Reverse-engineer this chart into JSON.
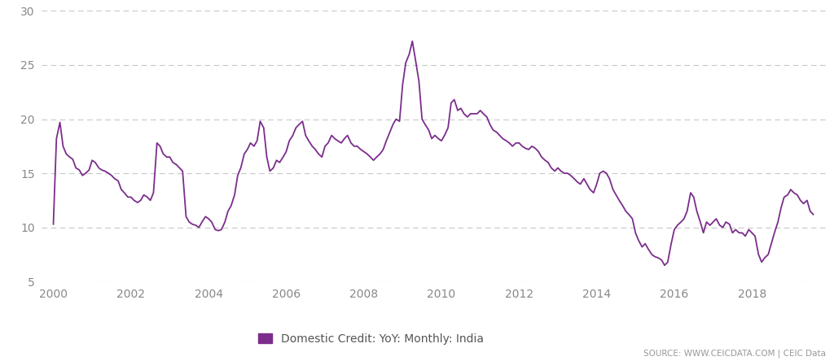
{
  "legend_label": "Domestic Credit: YoY: Monthly: India",
  "source_text": "SOURCE: WWW.CEICDATA.COM | CEIC Data",
  "line_color": "#7B2D8B",
  "background_color": "#ffffff",
  "ylim": [
    5,
    30
  ],
  "yticks": [
    5,
    10,
    15,
    20,
    25,
    30
  ],
  "xlim_start": 1999.7,
  "xlim_end": 2019.9,
  "xticks": [
    2000,
    2002,
    2004,
    2006,
    2008,
    2010,
    2012,
    2014,
    2016,
    2018
  ],
  "data": [
    [
      2000.0,
      10.3
    ],
    [
      2000.08,
      18.2
    ],
    [
      2000.17,
      19.7
    ],
    [
      2000.25,
      17.5
    ],
    [
      2000.33,
      16.8
    ],
    [
      2000.42,
      16.5
    ],
    [
      2000.5,
      16.3
    ],
    [
      2000.58,
      15.5
    ],
    [
      2000.67,
      15.3
    ],
    [
      2000.75,
      14.8
    ],
    [
      2000.83,
      15.0
    ],
    [
      2000.92,
      15.3
    ],
    [
      2001.0,
      16.2
    ],
    [
      2001.08,
      16.0
    ],
    [
      2001.17,
      15.5
    ],
    [
      2001.25,
      15.3
    ],
    [
      2001.33,
      15.2
    ],
    [
      2001.42,
      15.0
    ],
    [
      2001.5,
      14.8
    ],
    [
      2001.58,
      14.5
    ],
    [
      2001.67,
      14.3
    ],
    [
      2001.75,
      13.5
    ],
    [
      2001.83,
      13.2
    ],
    [
      2001.92,
      12.8
    ],
    [
      2002.0,
      12.8
    ],
    [
      2002.08,
      12.5
    ],
    [
      2002.17,
      12.3
    ],
    [
      2002.25,
      12.5
    ],
    [
      2002.33,
      13.0
    ],
    [
      2002.42,
      12.8
    ],
    [
      2002.5,
      12.5
    ],
    [
      2002.58,
      13.2
    ],
    [
      2002.67,
      17.8
    ],
    [
      2002.75,
      17.5
    ],
    [
      2002.83,
      16.8
    ],
    [
      2002.92,
      16.5
    ],
    [
      2003.0,
      16.5
    ],
    [
      2003.08,
      16.0
    ],
    [
      2003.17,
      15.8
    ],
    [
      2003.25,
      15.5
    ],
    [
      2003.33,
      15.2
    ],
    [
      2003.42,
      11.0
    ],
    [
      2003.5,
      10.5
    ],
    [
      2003.58,
      10.3
    ],
    [
      2003.67,
      10.2
    ],
    [
      2003.75,
      10.0
    ],
    [
      2003.83,
      10.5
    ],
    [
      2003.92,
      11.0
    ],
    [
      2004.0,
      10.8
    ],
    [
      2004.08,
      10.5
    ],
    [
      2004.17,
      9.8
    ],
    [
      2004.25,
      9.7
    ],
    [
      2004.33,
      9.8
    ],
    [
      2004.42,
      10.5
    ],
    [
      2004.5,
      11.5
    ],
    [
      2004.58,
      12.0
    ],
    [
      2004.67,
      13.0
    ],
    [
      2004.75,
      14.8
    ],
    [
      2004.83,
      15.5
    ],
    [
      2004.92,
      16.8
    ],
    [
      2005.0,
      17.2
    ],
    [
      2005.08,
      17.8
    ],
    [
      2005.17,
      17.5
    ],
    [
      2005.25,
      18.0
    ],
    [
      2005.33,
      19.8
    ],
    [
      2005.42,
      19.2
    ],
    [
      2005.5,
      16.5
    ],
    [
      2005.58,
      15.2
    ],
    [
      2005.67,
      15.5
    ],
    [
      2005.75,
      16.2
    ],
    [
      2005.83,
      16.0
    ],
    [
      2005.92,
      16.5
    ],
    [
      2006.0,
      17.0
    ],
    [
      2006.08,
      18.0
    ],
    [
      2006.17,
      18.5
    ],
    [
      2006.25,
      19.2
    ],
    [
      2006.33,
      19.5
    ],
    [
      2006.42,
      19.8
    ],
    [
      2006.5,
      18.5
    ],
    [
      2006.58,
      18.0
    ],
    [
      2006.67,
      17.5
    ],
    [
      2006.75,
      17.2
    ],
    [
      2006.83,
      16.8
    ],
    [
      2006.92,
      16.5
    ],
    [
      2007.0,
      17.5
    ],
    [
      2007.08,
      17.8
    ],
    [
      2007.17,
      18.5
    ],
    [
      2007.25,
      18.2
    ],
    [
      2007.33,
      18.0
    ],
    [
      2007.42,
      17.8
    ],
    [
      2007.5,
      18.2
    ],
    [
      2007.58,
      18.5
    ],
    [
      2007.67,
      17.8
    ],
    [
      2007.75,
      17.5
    ],
    [
      2007.83,
      17.5
    ],
    [
      2007.92,
      17.2
    ],
    [
      2008.0,
      17.0
    ],
    [
      2008.08,
      16.8
    ],
    [
      2008.17,
      16.5
    ],
    [
      2008.25,
      16.2
    ],
    [
      2008.33,
      16.5
    ],
    [
      2008.42,
      16.8
    ],
    [
      2008.5,
      17.2
    ],
    [
      2008.58,
      18.0
    ],
    [
      2008.67,
      18.8
    ],
    [
      2008.75,
      19.5
    ],
    [
      2008.83,
      20.0
    ],
    [
      2008.92,
      19.8
    ],
    [
      2009.0,
      23.2
    ],
    [
      2009.08,
      25.2
    ],
    [
      2009.17,
      26.0
    ],
    [
      2009.25,
      27.2
    ],
    [
      2009.33,
      25.5
    ],
    [
      2009.42,
      23.5
    ],
    [
      2009.5,
      20.0
    ],
    [
      2009.58,
      19.5
    ],
    [
      2009.67,
      19.0
    ],
    [
      2009.75,
      18.2
    ],
    [
      2009.83,
      18.5
    ],
    [
      2009.92,
      18.2
    ],
    [
      2010.0,
      18.0
    ],
    [
      2010.08,
      18.5
    ],
    [
      2010.17,
      19.2
    ],
    [
      2010.25,
      21.5
    ],
    [
      2010.33,
      21.8
    ],
    [
      2010.42,
      20.8
    ],
    [
      2010.5,
      21.0
    ],
    [
      2010.58,
      20.5
    ],
    [
      2010.67,
      20.2
    ],
    [
      2010.75,
      20.5
    ],
    [
      2010.83,
      20.5
    ],
    [
      2010.92,
      20.5
    ],
    [
      2011.0,
      20.8
    ],
    [
      2011.08,
      20.5
    ],
    [
      2011.17,
      20.2
    ],
    [
      2011.25,
      19.5
    ],
    [
      2011.33,
      19.0
    ],
    [
      2011.42,
      18.8
    ],
    [
      2011.5,
      18.5
    ],
    [
      2011.58,
      18.2
    ],
    [
      2011.67,
      18.0
    ],
    [
      2011.75,
      17.8
    ],
    [
      2011.83,
      17.5
    ],
    [
      2011.92,
      17.8
    ],
    [
      2012.0,
      17.8
    ],
    [
      2012.08,
      17.5
    ],
    [
      2012.17,
      17.3
    ],
    [
      2012.25,
      17.2
    ],
    [
      2012.33,
      17.5
    ],
    [
      2012.42,
      17.3
    ],
    [
      2012.5,
      17.0
    ],
    [
      2012.58,
      16.5
    ],
    [
      2012.67,
      16.2
    ],
    [
      2012.75,
      16.0
    ],
    [
      2012.83,
      15.5
    ],
    [
      2012.92,
      15.2
    ],
    [
      2013.0,
      15.5
    ],
    [
      2013.08,
      15.2
    ],
    [
      2013.17,
      15.0
    ],
    [
      2013.25,
      15.0
    ],
    [
      2013.33,
      14.8
    ],
    [
      2013.42,
      14.5
    ],
    [
      2013.5,
      14.2
    ],
    [
      2013.58,
      14.0
    ],
    [
      2013.67,
      14.5
    ],
    [
      2013.75,
      14.0
    ],
    [
      2013.83,
      13.5
    ],
    [
      2013.92,
      13.2
    ],
    [
      2014.0,
      14.0
    ],
    [
      2014.08,
      15.0
    ],
    [
      2014.17,
      15.2
    ],
    [
      2014.25,
      15.0
    ],
    [
      2014.33,
      14.5
    ],
    [
      2014.42,
      13.5
    ],
    [
      2014.5,
      13.0
    ],
    [
      2014.58,
      12.5
    ],
    [
      2014.67,
      12.0
    ],
    [
      2014.75,
      11.5
    ],
    [
      2014.83,
      11.2
    ],
    [
      2014.92,
      10.8
    ],
    [
      2015.0,
      9.5
    ],
    [
      2015.08,
      8.8
    ],
    [
      2015.17,
      8.2
    ],
    [
      2015.25,
      8.5
    ],
    [
      2015.33,
      8.0
    ],
    [
      2015.42,
      7.5
    ],
    [
      2015.5,
      7.3
    ],
    [
      2015.58,
      7.2
    ],
    [
      2015.67,
      7.0
    ],
    [
      2015.75,
      6.5
    ],
    [
      2015.83,
      6.8
    ],
    [
      2015.92,
      8.5
    ],
    [
      2016.0,
      9.8
    ],
    [
      2016.08,
      10.2
    ],
    [
      2016.17,
      10.5
    ],
    [
      2016.25,
      10.8
    ],
    [
      2016.33,
      11.5
    ],
    [
      2016.42,
      13.2
    ],
    [
      2016.5,
      12.8
    ],
    [
      2016.58,
      11.5
    ],
    [
      2016.67,
      10.5
    ],
    [
      2016.75,
      9.5
    ],
    [
      2016.83,
      10.5
    ],
    [
      2016.92,
      10.2
    ],
    [
      2017.0,
      10.5
    ],
    [
      2017.08,
      10.8
    ],
    [
      2017.17,
      10.2
    ],
    [
      2017.25,
      10.0
    ],
    [
      2017.33,
      10.5
    ],
    [
      2017.42,
      10.3
    ],
    [
      2017.5,
      9.5
    ],
    [
      2017.58,
      9.8
    ],
    [
      2017.67,
      9.5
    ],
    [
      2017.75,
      9.5
    ],
    [
      2017.83,
      9.2
    ],
    [
      2017.92,
      9.8
    ],
    [
      2018.0,
      9.5
    ],
    [
      2018.08,
      9.2
    ],
    [
      2018.17,
      7.5
    ],
    [
      2018.25,
      6.8
    ],
    [
      2018.33,
      7.2
    ],
    [
      2018.42,
      7.5
    ],
    [
      2018.5,
      8.5
    ],
    [
      2018.58,
      9.5
    ],
    [
      2018.67,
      10.5
    ],
    [
      2018.75,
      11.8
    ],
    [
      2018.83,
      12.8
    ],
    [
      2018.92,
      13.0
    ],
    [
      2019.0,
      13.5
    ],
    [
      2019.08,
      13.2
    ],
    [
      2019.17,
      13.0
    ],
    [
      2019.25,
      12.5
    ],
    [
      2019.33,
      12.2
    ],
    [
      2019.42,
      12.5
    ],
    [
      2019.5,
      11.5
    ],
    [
      2019.58,
      11.2
    ]
  ]
}
